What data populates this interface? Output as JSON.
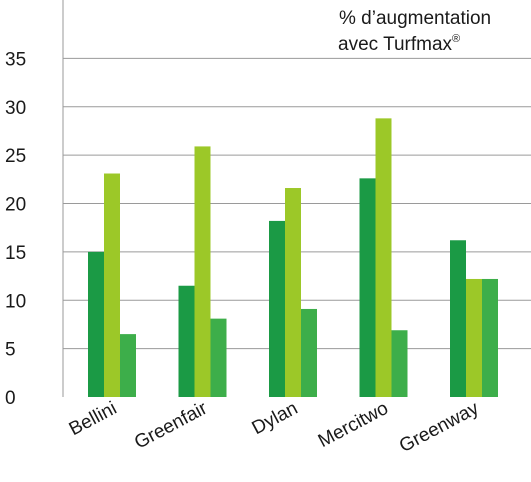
{
  "chart_data": {
    "type": "bar",
    "title_line1": "% d’augmentation",
    "title_line2": "avec Turfmax",
    "title_mark": "®",
    "categories": [
      "Bellini",
      "Greenfair",
      "Dylan",
      "Mercitwo",
      "Greenway"
    ],
    "yticks": [
      "0",
      "5",
      "10",
      "15",
      "20",
      "25",
      "30",
      "35"
    ],
    "ylim": [
      0,
      40
    ],
    "grid": true,
    "series": [
      {
        "color": "#1b9a45",
        "values": [
          15,
          11.5,
          18.2,
          22.6,
          16.2
        ]
      },
      {
        "color": "#9cc828",
        "values": [
          23.1,
          25.9,
          21.6,
          28.8,
          12.2
        ]
      },
      {
        "color": "#3dae4a",
        "values": [
          6.5,
          8.1,
          9.1,
          6.9,
          12.2
        ]
      }
    ]
  }
}
